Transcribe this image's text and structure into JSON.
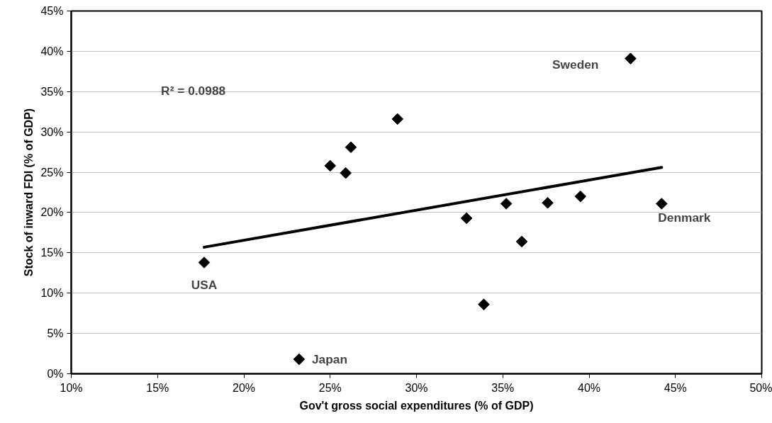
{
  "chart_data": {
    "type": "scatter",
    "xlabel": "Gov't gross social expenditures (% of GDP)",
    "ylabel": "Stock of inward FDI (% of GDP)",
    "xlim": [
      10,
      50
    ],
    "xticks": [
      {
        "value": 10,
        "label": "10%"
      },
      {
        "value": 15,
        "label": "15%"
      },
      {
        "value": 20,
        "label": "20%"
      },
      {
        "value": 25,
        "label": "25%"
      },
      {
        "value": 30,
        "label": "30%"
      },
      {
        "value": 35,
        "label": "35%"
      },
      {
        "value": 40,
        "label": "40%"
      },
      {
        "value": 45,
        "label": "45%"
      },
      {
        "value": 50,
        "label": "50%"
      }
    ],
    "ylim": [
      0,
      45
    ],
    "yticks": [
      {
        "value": 0,
        "label": "0%"
      },
      {
        "value": 5,
        "label": "5%"
      },
      {
        "value": 10,
        "label": "10%"
      },
      {
        "value": 15,
        "label": "15%"
      },
      {
        "value": 20,
        "label": "20%"
      },
      {
        "value": 25,
        "label": "25%"
      },
      {
        "value": 30,
        "label": "30%"
      },
      {
        "value": 35,
        "label": "35%"
      },
      {
        "value": 40,
        "label": "40%"
      },
      {
        "value": 45,
        "label": "45%"
      }
    ],
    "grid": "y",
    "series": [
      {
        "marker": "diamond",
        "color": "#000000",
        "x": [
          17.7,
          23.2,
          25.0,
          25.9,
          26.2,
          28.9,
          32.9,
          33.9,
          35.2,
          36.1,
          37.6,
          39.5,
          42.4,
          44.2
        ],
        "values": [
          13.8,
          1.8,
          25.8,
          24.9,
          28.1,
          31.6,
          19.3,
          8.6,
          21.1,
          16.4,
          21.2,
          22.0,
          39.1,
          21.1
        ]
      },
      {
        "type": "line",
        "color": "#000000",
        "x": [
          17.7,
          44.2
        ],
        "values": [
          15.7,
          25.6
        ]
      }
    ],
    "annotations": [
      "R² = 0.0988",
      {
        "text": "USA",
        "x": 17.7,
        "y": 13.8
      },
      {
        "text": "Japan",
        "x": 23.2,
        "y": 1.8
      },
      {
        "text": "Sweden",
        "x": 42.4,
        "y": 39.1
      },
      {
        "text": "Denmark",
        "x": 44.2,
        "y": 21.1
      }
    ]
  }
}
